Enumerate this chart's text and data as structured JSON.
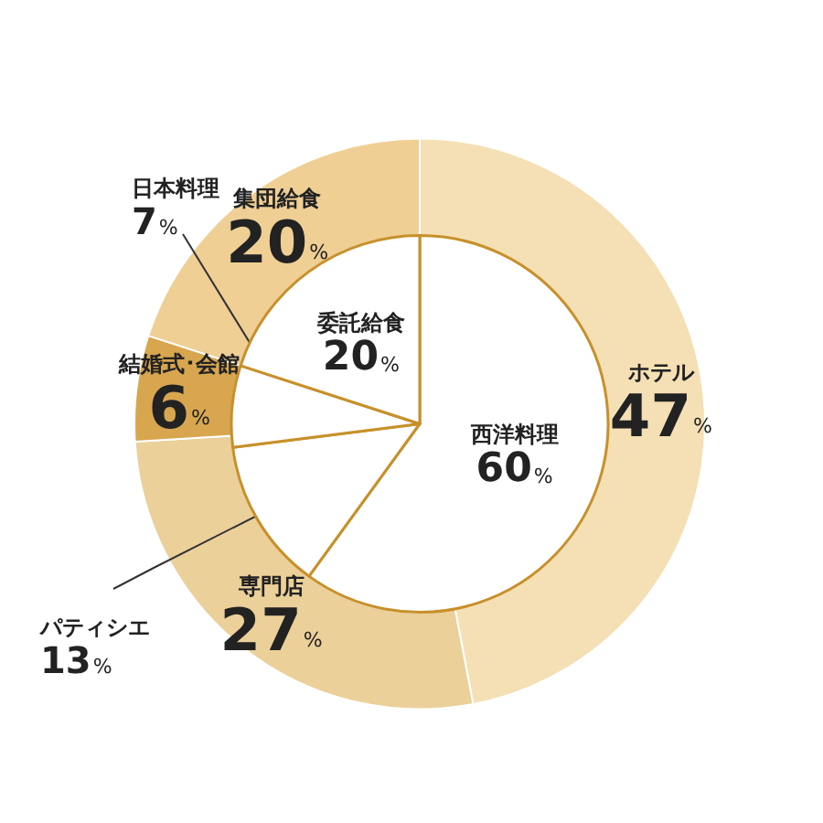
{
  "chart_data": [
    {
      "type": "pie",
      "categories": [
        "西洋料理",
        "パティシエ",
        "日本料理",
        "委託給食"
      ],
      "values": [
        60,
        13,
        7,
        20
      ],
      "value_labels": [
        "60%",
        "13%",
        "7%",
        "20%"
      ],
      "colors": [
        "#ffffff",
        "#ffffff",
        "#ffffff",
        "#ffffff"
      ],
      "legend": false
    },
    {
      "type": "donut",
      "categories": [
        "ホテル",
        "専門店",
        "結婚式･会館",
        "集団給食"
      ],
      "values": [
        47,
        27,
        6,
        20
      ],
      "value_labels": [
        "47%",
        "27%",
        "6%",
        "20%"
      ],
      "colors": [
        "#f5dfb4",
        "#ecd09a",
        "#d9a650",
        "#efcf94"
      ],
      "legend": false
    }
  ]
}
